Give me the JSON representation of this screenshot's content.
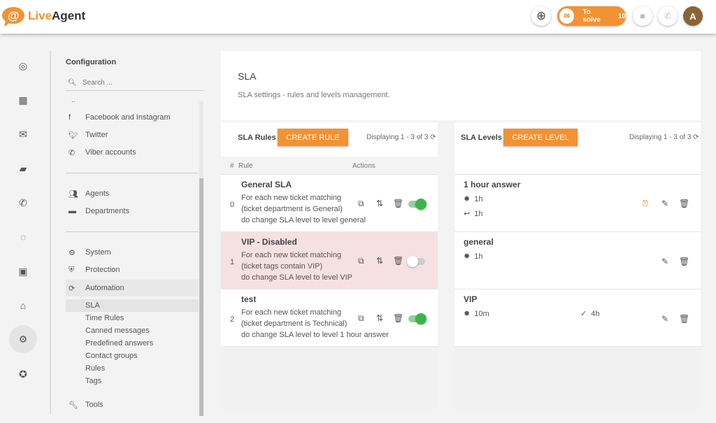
{
  "header": {
    "logo": "LiveAgent",
    "logo_part1": "Live",
    "logo_part2": "Agent",
    "to_solve_label": "To solve",
    "to_solve_count": "10",
    "avatar_letter": "A",
    "accent": "#f39233",
    "avatar_color": "#8a6437"
  },
  "rail": [
    {
      "icon": "check-circle-icon"
    },
    {
      "icon": "dashboard-icon"
    },
    {
      "icon": "mail-icon"
    },
    {
      "icon": "chat-icon"
    },
    {
      "icon": "phone-icon"
    },
    {
      "icon": "reports-icon"
    },
    {
      "icon": "contacts-icon"
    },
    {
      "icon": "knowledgebase-icon"
    },
    {
      "icon": "gear-icon"
    },
    {
      "icon": "star-icon"
    }
  ],
  "sidebar": {
    "title": "Configuration",
    "search_placeholder": "Search ...",
    "truncated": "..",
    "group1": [
      {
        "label": "Facebook and Instagram",
        "icon": "facebook-icon"
      },
      {
        "label": "Twitter",
        "icon": "twitter-icon"
      },
      {
        "label": "Viber accounts",
        "icon": "viber-icon"
      }
    ],
    "group2": [
      {
        "label": "Agents",
        "icon": "agents-icon"
      },
      {
        "label": "Departments",
        "icon": "folder-icon"
      }
    ],
    "group3": [
      {
        "label": "System",
        "icon": "gear-icon"
      },
      {
        "label": "Protection",
        "icon": "shield-icon"
      },
      {
        "label": "Automation",
        "icon": "refresh-icon"
      }
    ],
    "automation_sub": [
      "SLA",
      "Time Rules",
      "Canned messages",
      "Predefined answers",
      "Contact groups",
      "Rules",
      "Tags"
    ],
    "tools": "Tools"
  },
  "page": {
    "title": "SLA",
    "subtitle": "SLA settings - rules and levels management."
  },
  "rules": {
    "title": "SLA Rules",
    "create": "CREATE RULE",
    "displaying": "Displaying 1 - 3 of 3",
    "col_num": "#",
    "col_rule": "Rule",
    "col_actions": "Actions",
    "items": [
      {
        "num": "0",
        "title": "General SLA",
        "l1": "For each new ticket matching",
        "l2": "(ticket department is General)",
        "l3": "do change SLA level to level general",
        "enabled": true
      },
      {
        "num": "1",
        "title": "VIP - Disabled",
        "l1": "For each new ticket matching",
        "l2": "(ticket tags contain VIP)",
        "l3": "do change SLA level to level VIP",
        "enabled": false
      },
      {
        "num": "2",
        "title": "test",
        "l1": "For each new ticket matching",
        "l2": "(ticket department is Technical)",
        "l3": "do change SLA level to level 1 hour answer",
        "enabled": true
      }
    ]
  },
  "levels": {
    "title": "SLA Levels",
    "create": "CREATE LEVEL",
    "displaying": "Displaying 1 - 3 of 3",
    "items": [
      {
        "title": "1 hour answer",
        "first": "1h",
        "reply": "1h"
      },
      {
        "title": "general",
        "first": "1h"
      },
      {
        "title": "VIP",
        "first": "10m",
        "resolve": "4h"
      }
    ]
  }
}
